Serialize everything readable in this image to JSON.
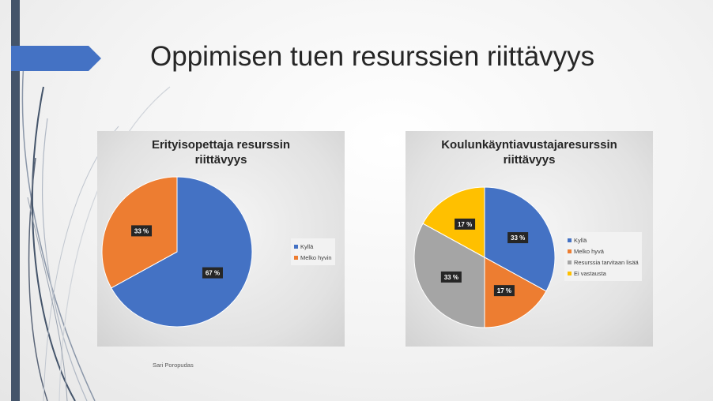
{
  "slide": {
    "title": "Oppimisen tuen resurssien riittävyys",
    "author": "Sari Poropudas",
    "accent_color": "#4472c4",
    "bar_color": "#44546a"
  },
  "chart_data": [
    {
      "type": "pie",
      "title_lines": [
        "Erityisopettaja resurssin",
        "riittävyys"
      ],
      "categories": [
        "Kyllä",
        "Melko hyvin"
      ],
      "values": [
        67,
        33
      ],
      "labels": [
        "67 %",
        "33 %"
      ],
      "colors": [
        "#4472c4",
        "#ed7d31"
      ],
      "legend_position": "right"
    },
    {
      "type": "pie",
      "title_lines": [
        "Koulunkäyntiavustajaresurssin",
        "riittävyys"
      ],
      "categories": [
        "Kyllä",
        "Melko hyvä",
        "Resurssia tarvitaan lisää",
        "Ei vastausta"
      ],
      "values": [
        33,
        17,
        33,
        17
      ],
      "labels": [
        "33 %",
        "17 %",
        "33 %",
        "17 %"
      ],
      "colors": [
        "#4472c4",
        "#ed7d31",
        "#a5a5a5",
        "#ffc000"
      ],
      "legend_position": "right"
    }
  ]
}
